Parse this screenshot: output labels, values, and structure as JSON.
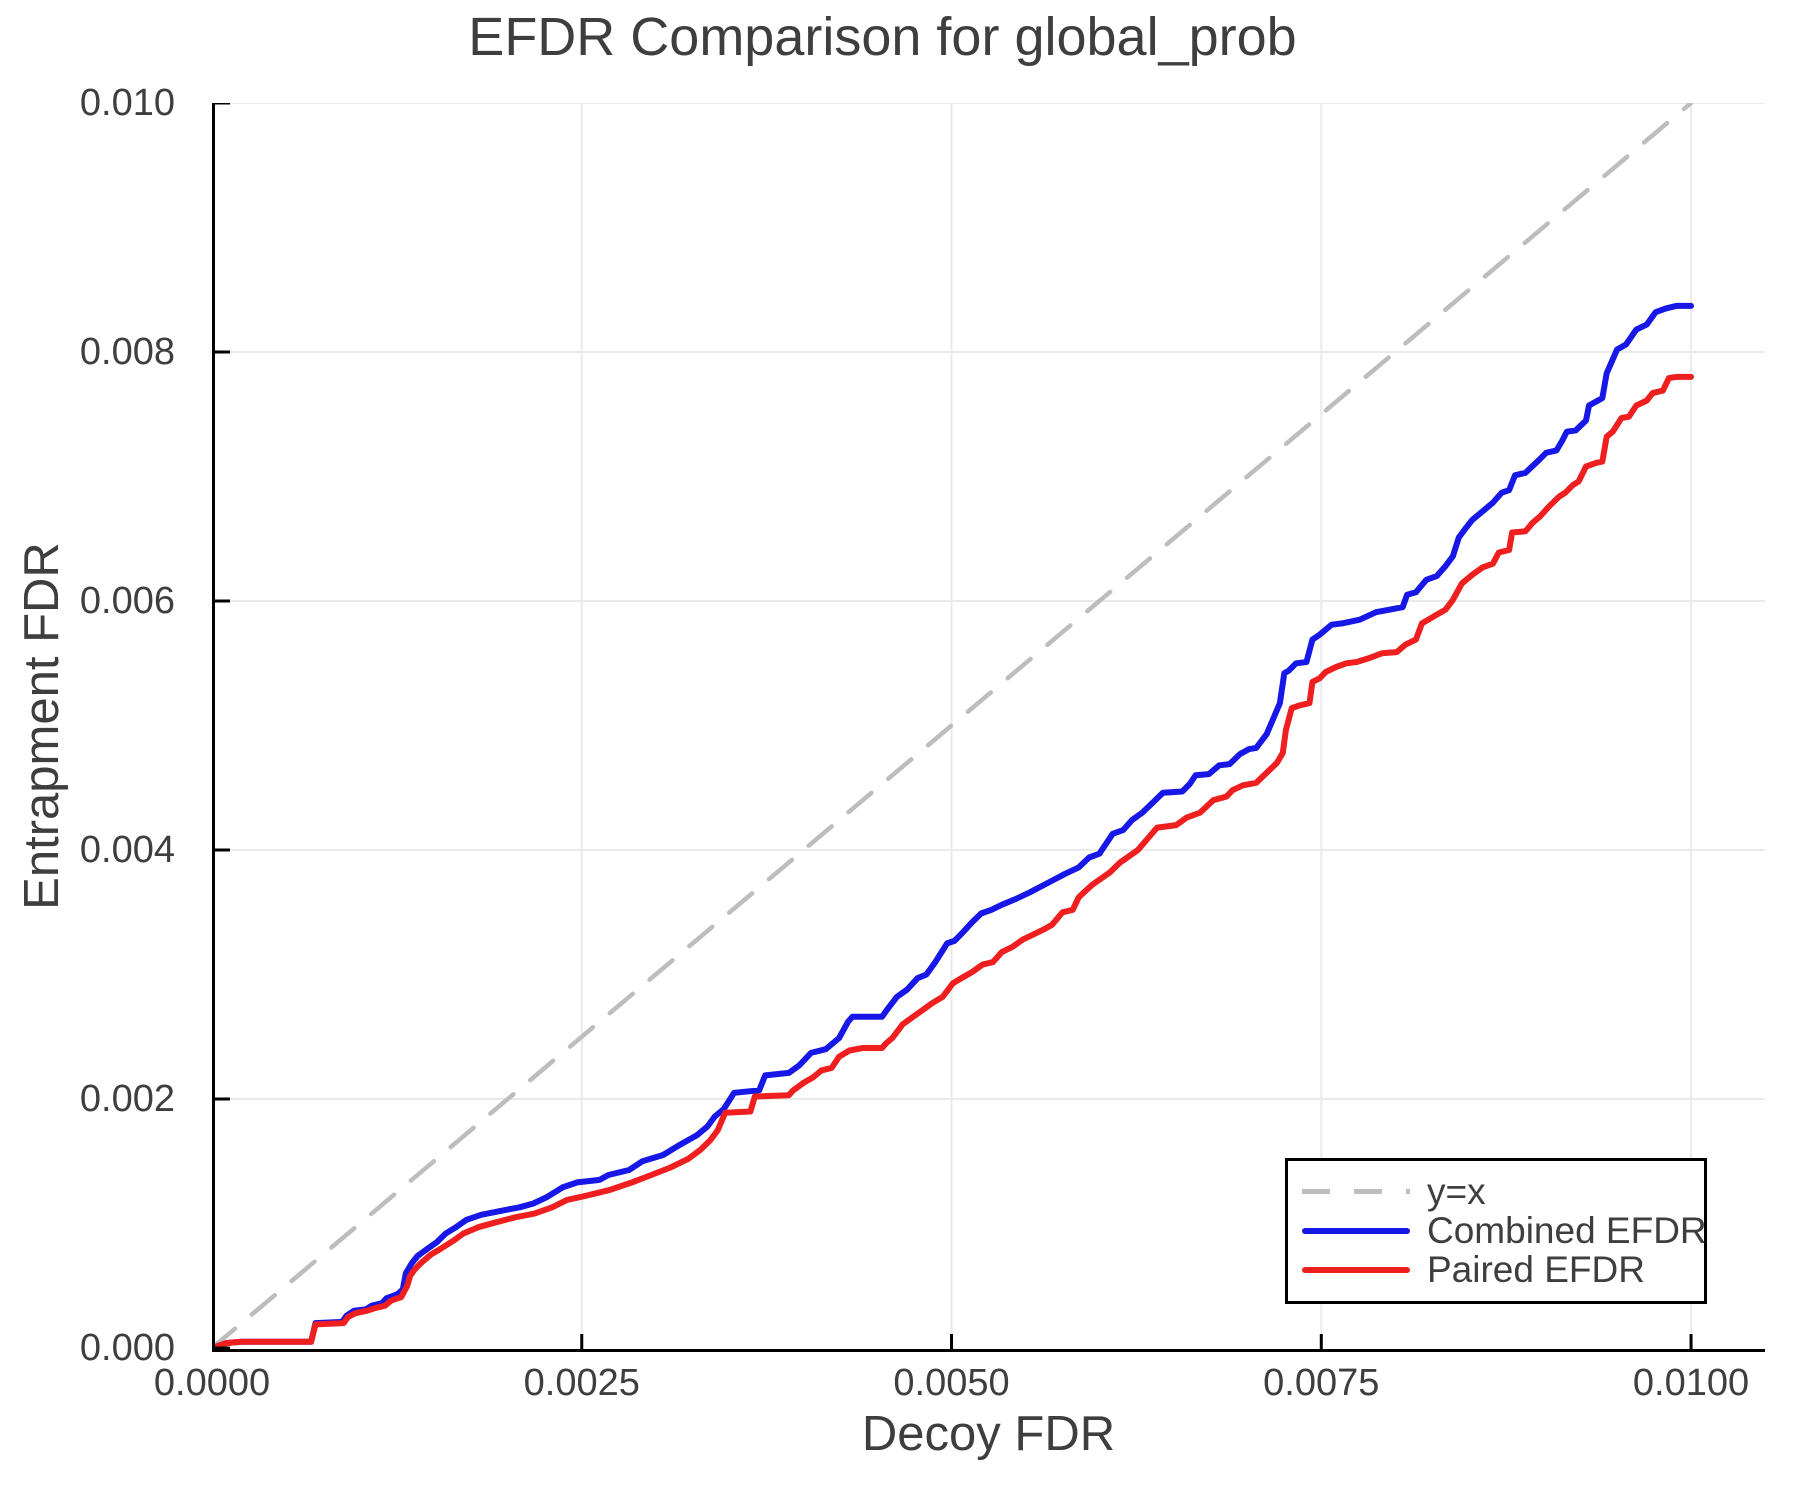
{
  "chart_data": {
    "type": "line",
    "title": "EFDR Comparison for global_prob",
    "xlabel": "Decoy FDR",
    "ylabel": "Entrapment FDR",
    "xlim": [
      0,
      0.0105
    ],
    "ylim": [
      -3.2e-05,
      0.01
    ],
    "grid": true,
    "x_ticks": {
      "values": [
        0.0,
        0.0025,
        0.005,
        0.0075,
        0.01
      ],
      "labels": [
        "0.0000",
        "0.0025",
        "0.0050",
        "0.0075",
        "0.0100"
      ]
    },
    "y_ticks": {
      "values": [
        0.0,
        0.002,
        0.004,
        0.006,
        0.008,
        0.01
      ],
      "labels": [
        "0.000",
        "0.002",
        "0.004",
        "0.006",
        "0.008",
        "0.010"
      ]
    },
    "colors": {
      "identity": "#bdbdbd",
      "combined": "#1717e8",
      "paired": "#ef1f1f",
      "grid": "#eaeaea",
      "spine": "#000000",
      "text": "#3e3e3e"
    },
    "legend": {
      "position": "lower right",
      "entries": [
        {
          "label": "y=x",
          "style": "dashed",
          "color": "#bdbdbd"
        },
        {
          "label": "Combined EFDR",
          "style": "solid",
          "color": "#1717e8"
        },
        {
          "label": "Paired EFDR",
          "style": "solid",
          "color": "#ef1f1f"
        }
      ]
    },
    "series": [
      {
        "name": "y=x",
        "style": "dashed",
        "color": "#bdbdbd",
        "width": 4.5,
        "points": [
          [
            0,
            0
          ],
          [
            0.01,
            0.01
          ]
        ]
      },
      {
        "name": "Combined EFDR",
        "style": "solid",
        "color": "#1717e8",
        "width": 6,
        "points": [
          [
            0,
            0
          ],
          [
            0.0001,
            4e-05
          ],
          [
            0.0002,
            5e-05
          ],
          [
            0.00067,
            5e-05
          ],
          [
            0.0007,
            0.0002
          ],
          [
            0.00088,
            0.00021
          ],
          [
            0.00091,
            0.00026
          ],
          [
            0.00096,
            0.0003
          ],
          [
            0.00104,
            0.00031
          ],
          [
            0.00108,
            0.00034
          ],
          [
            0.00115,
            0.00036
          ],
          [
            0.00118,
            0.0004
          ],
          [
            0.00125,
            0.00043
          ],
          [
            0.00129,
            0.00047
          ],
          [
            0.00131,
            0.0006
          ],
          [
            0.00135,
            0.00068
          ],
          [
            0.00139,
            0.00074
          ],
          [
            0.00146,
            0.0008
          ],
          [
            0.00152,
            0.00085
          ],
          [
            0.00158,
            0.00092
          ],
          [
            0.00165,
            0.00097
          ],
          [
            0.00172,
            0.00103
          ],
          [
            0.00182,
            0.00107
          ],
          [
            0.00199,
            0.00111
          ],
          [
            0.00208,
            0.00113
          ],
          [
            0.00217,
            0.00116
          ],
          [
            0.00226,
            0.00121
          ],
          [
            0.00237,
            0.00129
          ],
          [
            0.00247,
            0.00133
          ],
          [
            0.00262,
            0.00135
          ],
          [
            0.00268,
            0.00139
          ],
          [
            0.00282,
            0.00143
          ],
          [
            0.00291,
            0.0015
          ],
          [
            0.00305,
            0.00155
          ],
          [
            0.00316,
            0.00163
          ],
          [
            0.00328,
            0.00171
          ],
          [
            0.00335,
            0.00178
          ],
          [
            0.0034,
            0.00186
          ],
          [
            0.00346,
            0.00192
          ],
          [
            0.00353,
            0.00205
          ],
          [
            0.0037,
            0.00207
          ],
          [
            0.00374,
            0.00219
          ],
          [
            0.0039,
            0.00221
          ],
          [
            0.00397,
            0.00227
          ],
          [
            0.00405,
            0.00237
          ],
          [
            0.00415,
            0.0024
          ],
          [
            0.00424,
            0.00249
          ],
          [
            0.0043,
            0.00262
          ],
          [
            0.00433,
            0.00266
          ],
          [
            0.00453,
            0.00266
          ],
          [
            0.00456,
            0.00271
          ],
          [
            0.00463,
            0.00282
          ],
          [
            0.0047,
            0.00288
          ],
          [
            0.00477,
            0.00297
          ],
          [
            0.00483,
            0.003
          ],
          [
            0.00489,
            0.0031
          ],
          [
            0.00497,
            0.00325
          ],
          [
            0.00502,
            0.00327
          ],
          [
            0.00507,
            0.00333
          ],
          [
            0.00514,
            0.00342
          ],
          [
            0.0052,
            0.00349
          ],
          [
            0.00527,
            0.00352
          ],
          [
            0.00534,
            0.00356
          ],
          [
            0.00544,
            0.00361
          ],
          [
            0.00553,
            0.00366
          ],
          [
            0.00561,
            0.00371
          ],
          [
            0.00569,
            0.00376
          ],
          [
            0.00577,
            0.00381
          ],
          [
            0.00586,
            0.00386
          ],
          [
            0.00593,
            0.00394
          ],
          [
            0.006,
            0.00397
          ],
          [
            0.00609,
            0.00413
          ],
          [
            0.00616,
            0.00416
          ],
          [
            0.00622,
            0.00424
          ],
          [
            0.00629,
            0.0043
          ],
          [
            0.00636,
            0.00438
          ],
          [
            0.00643,
            0.00446
          ],
          [
            0.00656,
            0.00447
          ],
          [
            0.00661,
            0.00453
          ],
          [
            0.00665,
            0.0046
          ],
          [
            0.00674,
            0.00461
          ],
          [
            0.00681,
            0.00468
          ],
          [
            0.00688,
            0.00469
          ],
          [
            0.00695,
            0.00477
          ],
          [
            0.00701,
            0.00481
          ],
          [
            0.00706,
            0.00482
          ],
          [
            0.00713,
            0.00493
          ],
          [
            0.00717,
            0.00504
          ],
          [
            0.00722,
            0.00518
          ],
          [
            0.00725,
            0.00542
          ],
          [
            0.00728,
            0.00544
          ],
          [
            0.00733,
            0.0055
          ],
          [
            0.0074,
            0.00551
          ],
          [
            0.00744,
            0.00569
          ],
          [
            0.00749,
            0.00573
          ],
          [
            0.00757,
            0.00581
          ],
          [
            0.00764,
            0.00582
          ],
          [
            0.00776,
            0.00585
          ],
          [
            0.00787,
            0.00591
          ],
          [
            0.00805,
            0.00595
          ],
          [
            0.00808,
            0.00605
          ],
          [
            0.00814,
            0.00607
          ],
          [
            0.00821,
            0.00617
          ],
          [
            0.00828,
            0.0062
          ],
          [
            0.00834,
            0.00628
          ],
          [
            0.00839,
            0.00636
          ],
          [
            0.00843,
            0.00651
          ],
          [
            0.00848,
            0.00659
          ],
          [
            0.00852,
            0.00665
          ],
          [
            0.00859,
            0.00672
          ],
          [
            0.00866,
            0.00679
          ],
          [
            0.00872,
            0.00687
          ],
          [
            0.00877,
            0.00689
          ],
          [
            0.00881,
            0.00701
          ],
          [
            0.00888,
            0.00703
          ],
          [
            0.00897,
            0.00713
          ],
          [
            0.00902,
            0.00719
          ],
          [
            0.00909,
            0.00721
          ],
          [
            0.00913,
            0.00729
          ],
          [
            0.00916,
            0.00736
          ],
          [
            0.00922,
            0.00737
          ],
          [
            0.00929,
            0.00745
          ],
          [
            0.00931,
            0.00757
          ],
          [
            0.0094,
            0.00763
          ],
          [
            0.00943,
            0.00783
          ],
          [
            0.0095,
            0.00802
          ],
          [
            0.00956,
            0.00806
          ],
          [
            0.00963,
            0.00818
          ],
          [
            0.0097,
            0.00822
          ],
          [
            0.00976,
            0.00832
          ],
          [
            0.00983,
            0.00835
          ],
          [
            0.0099,
            0.00837
          ],
          [
            0.01,
            0.00837
          ]
        ]
      },
      {
        "name": "Paired EFDR",
        "style": "solid",
        "color": "#ef1f1f",
        "width": 6,
        "points": [
          [
            0,
            0
          ],
          [
            0.0001,
            4e-05
          ],
          [
            0.0002,
            5e-05
          ],
          [
            0.00067,
            5e-05
          ],
          [
            0.0007,
            0.00019
          ],
          [
            0.00089,
            0.0002
          ],
          [
            0.00092,
            0.00025
          ],
          [
            0.00097,
            0.00028
          ],
          [
            0.00105,
            0.0003
          ],
          [
            0.0011,
            0.00032
          ],
          [
            0.00117,
            0.00034
          ],
          [
            0.00121,
            0.00038
          ],
          [
            0.00128,
            0.00041
          ],
          [
            0.00132,
            0.0005
          ],
          [
            0.00134,
            0.00058
          ],
          [
            0.00137,
            0.00063
          ],
          [
            0.00141,
            0.00068
          ],
          [
            0.00148,
            0.00075
          ],
          [
            0.00155,
            0.0008
          ],
          [
            0.00163,
            0.00086
          ],
          [
            0.0017,
            0.00092
          ],
          [
            0.0018,
            0.00097
          ],
          [
            0.00192,
            0.00101
          ],
          [
            0.00205,
            0.00105
          ],
          [
            0.00218,
            0.00108
          ],
          [
            0.0023,
            0.00113
          ],
          [
            0.0024,
            0.00119
          ],
          [
            0.00252,
            0.00122
          ],
          [
            0.00269,
            0.00127
          ],
          [
            0.00284,
            0.00133
          ],
          [
            0.00297,
            0.00139
          ],
          [
            0.0031,
            0.00145
          ],
          [
            0.00322,
            0.00152
          ],
          [
            0.0033,
            0.00159
          ],
          [
            0.00337,
            0.00167
          ],
          [
            0.00342,
            0.00175
          ],
          [
            0.00347,
            0.00189
          ],
          [
            0.00364,
            0.0019
          ],
          [
            0.00367,
            0.00202
          ],
          [
            0.0039,
            0.00203
          ],
          [
            0.00393,
            0.00207
          ],
          [
            0.004,
            0.00213
          ],
          [
            0.00406,
            0.00217
          ],
          [
            0.00412,
            0.00223
          ],
          [
            0.00419,
            0.00225
          ],
          [
            0.00424,
            0.00234
          ],
          [
            0.00431,
            0.00239
          ],
          [
            0.0044,
            0.00241
          ],
          [
            0.00453,
            0.00241
          ],
          [
            0.00456,
            0.00245
          ],
          [
            0.0046,
            0.00249
          ],
          [
            0.00467,
            0.0026
          ],
          [
            0.00474,
            0.00266
          ],
          [
            0.0048,
            0.00271
          ],
          [
            0.00487,
            0.00277
          ],
          [
            0.00494,
            0.00282
          ],
          [
            0.00501,
            0.00293
          ],
          [
            0.00508,
            0.00298
          ],
          [
            0.00514,
            0.00302
          ],
          [
            0.00521,
            0.00308
          ],
          [
            0.00528,
            0.0031
          ],
          [
            0.00534,
            0.00318
          ],
          [
            0.00541,
            0.00322
          ],
          [
            0.00548,
            0.00328
          ],
          [
            0.00555,
            0.00332
          ],
          [
            0.00562,
            0.00336
          ],
          [
            0.00568,
            0.0034
          ],
          [
            0.00575,
            0.0035
          ],
          [
            0.00582,
            0.00352
          ],
          [
            0.00586,
            0.00362
          ],
          [
            0.00595,
            0.00372
          ],
          [
            0.00607,
            0.00382
          ],
          [
            0.00614,
            0.0039
          ],
          [
            0.00626,
            0.004
          ],
          [
            0.00639,
            0.00418
          ],
          [
            0.00652,
            0.0042
          ],
          [
            0.00659,
            0.00426
          ],
          [
            0.00668,
            0.0043
          ],
          [
            0.00677,
            0.0044
          ],
          [
            0.00686,
            0.00443
          ],
          [
            0.0069,
            0.00448
          ],
          [
            0.00697,
            0.00452
          ],
          [
            0.00706,
            0.00454
          ],
          [
            0.00713,
            0.00462
          ],
          [
            0.0072,
            0.0047
          ],
          [
            0.00724,
            0.00478
          ],
          [
            0.00726,
            0.00496
          ],
          [
            0.0073,
            0.00514
          ],
          [
            0.00735,
            0.00516
          ],
          [
            0.00742,
            0.00518
          ],
          [
            0.00744,
            0.00535
          ],
          [
            0.00749,
            0.00538
          ],
          [
            0.00753,
            0.00543
          ],
          [
            0.0076,
            0.00547
          ],
          [
            0.00767,
            0.0055
          ],
          [
            0.00774,
            0.00551
          ],
          [
            0.00782,
            0.00554
          ],
          [
            0.00791,
            0.00558
          ],
          [
            0.00801,
            0.00559
          ],
          [
            0.00807,
            0.00565
          ],
          [
            0.00814,
            0.00569
          ],
          [
            0.00818,
            0.00582
          ],
          [
            0.00828,
            0.00589
          ],
          [
            0.00834,
            0.00593
          ],
          [
            0.00839,
            0.00601
          ],
          [
            0.00845,
            0.00614
          ],
          [
            0.00852,
            0.00621
          ],
          [
            0.00859,
            0.00627
          ],
          [
            0.00866,
            0.0063
          ],
          [
            0.0087,
            0.00639
          ],
          [
            0.00877,
            0.00641
          ],
          [
            0.00879,
            0.00655
          ],
          [
            0.00888,
            0.00656
          ],
          [
            0.00893,
            0.00663
          ],
          [
            0.00898,
            0.00668
          ],
          [
            0.00904,
            0.00676
          ],
          [
            0.00911,
            0.00684
          ],
          [
            0.00915,
            0.00687
          ],
          [
            0.0092,
            0.00693
          ],
          [
            0.00924,
            0.00696
          ],
          [
            0.00929,
            0.00708
          ],
          [
            0.00936,
            0.00711
          ],
          [
            0.0094,
            0.00712
          ],
          [
            0.00943,
            0.00732
          ],
          [
            0.00947,
            0.00736
          ],
          [
            0.00953,
            0.00747
          ],
          [
            0.00958,
            0.00748
          ],
          [
            0.00963,
            0.00757
          ],
          [
            0.0097,
            0.00761
          ],
          [
            0.00974,
            0.00767
          ],
          [
            0.00981,
            0.00769
          ],
          [
            0.00985,
            0.00779
          ],
          [
            0.0099,
            0.0078
          ],
          [
            0.01,
            0.0078
          ]
        ]
      }
    ]
  }
}
